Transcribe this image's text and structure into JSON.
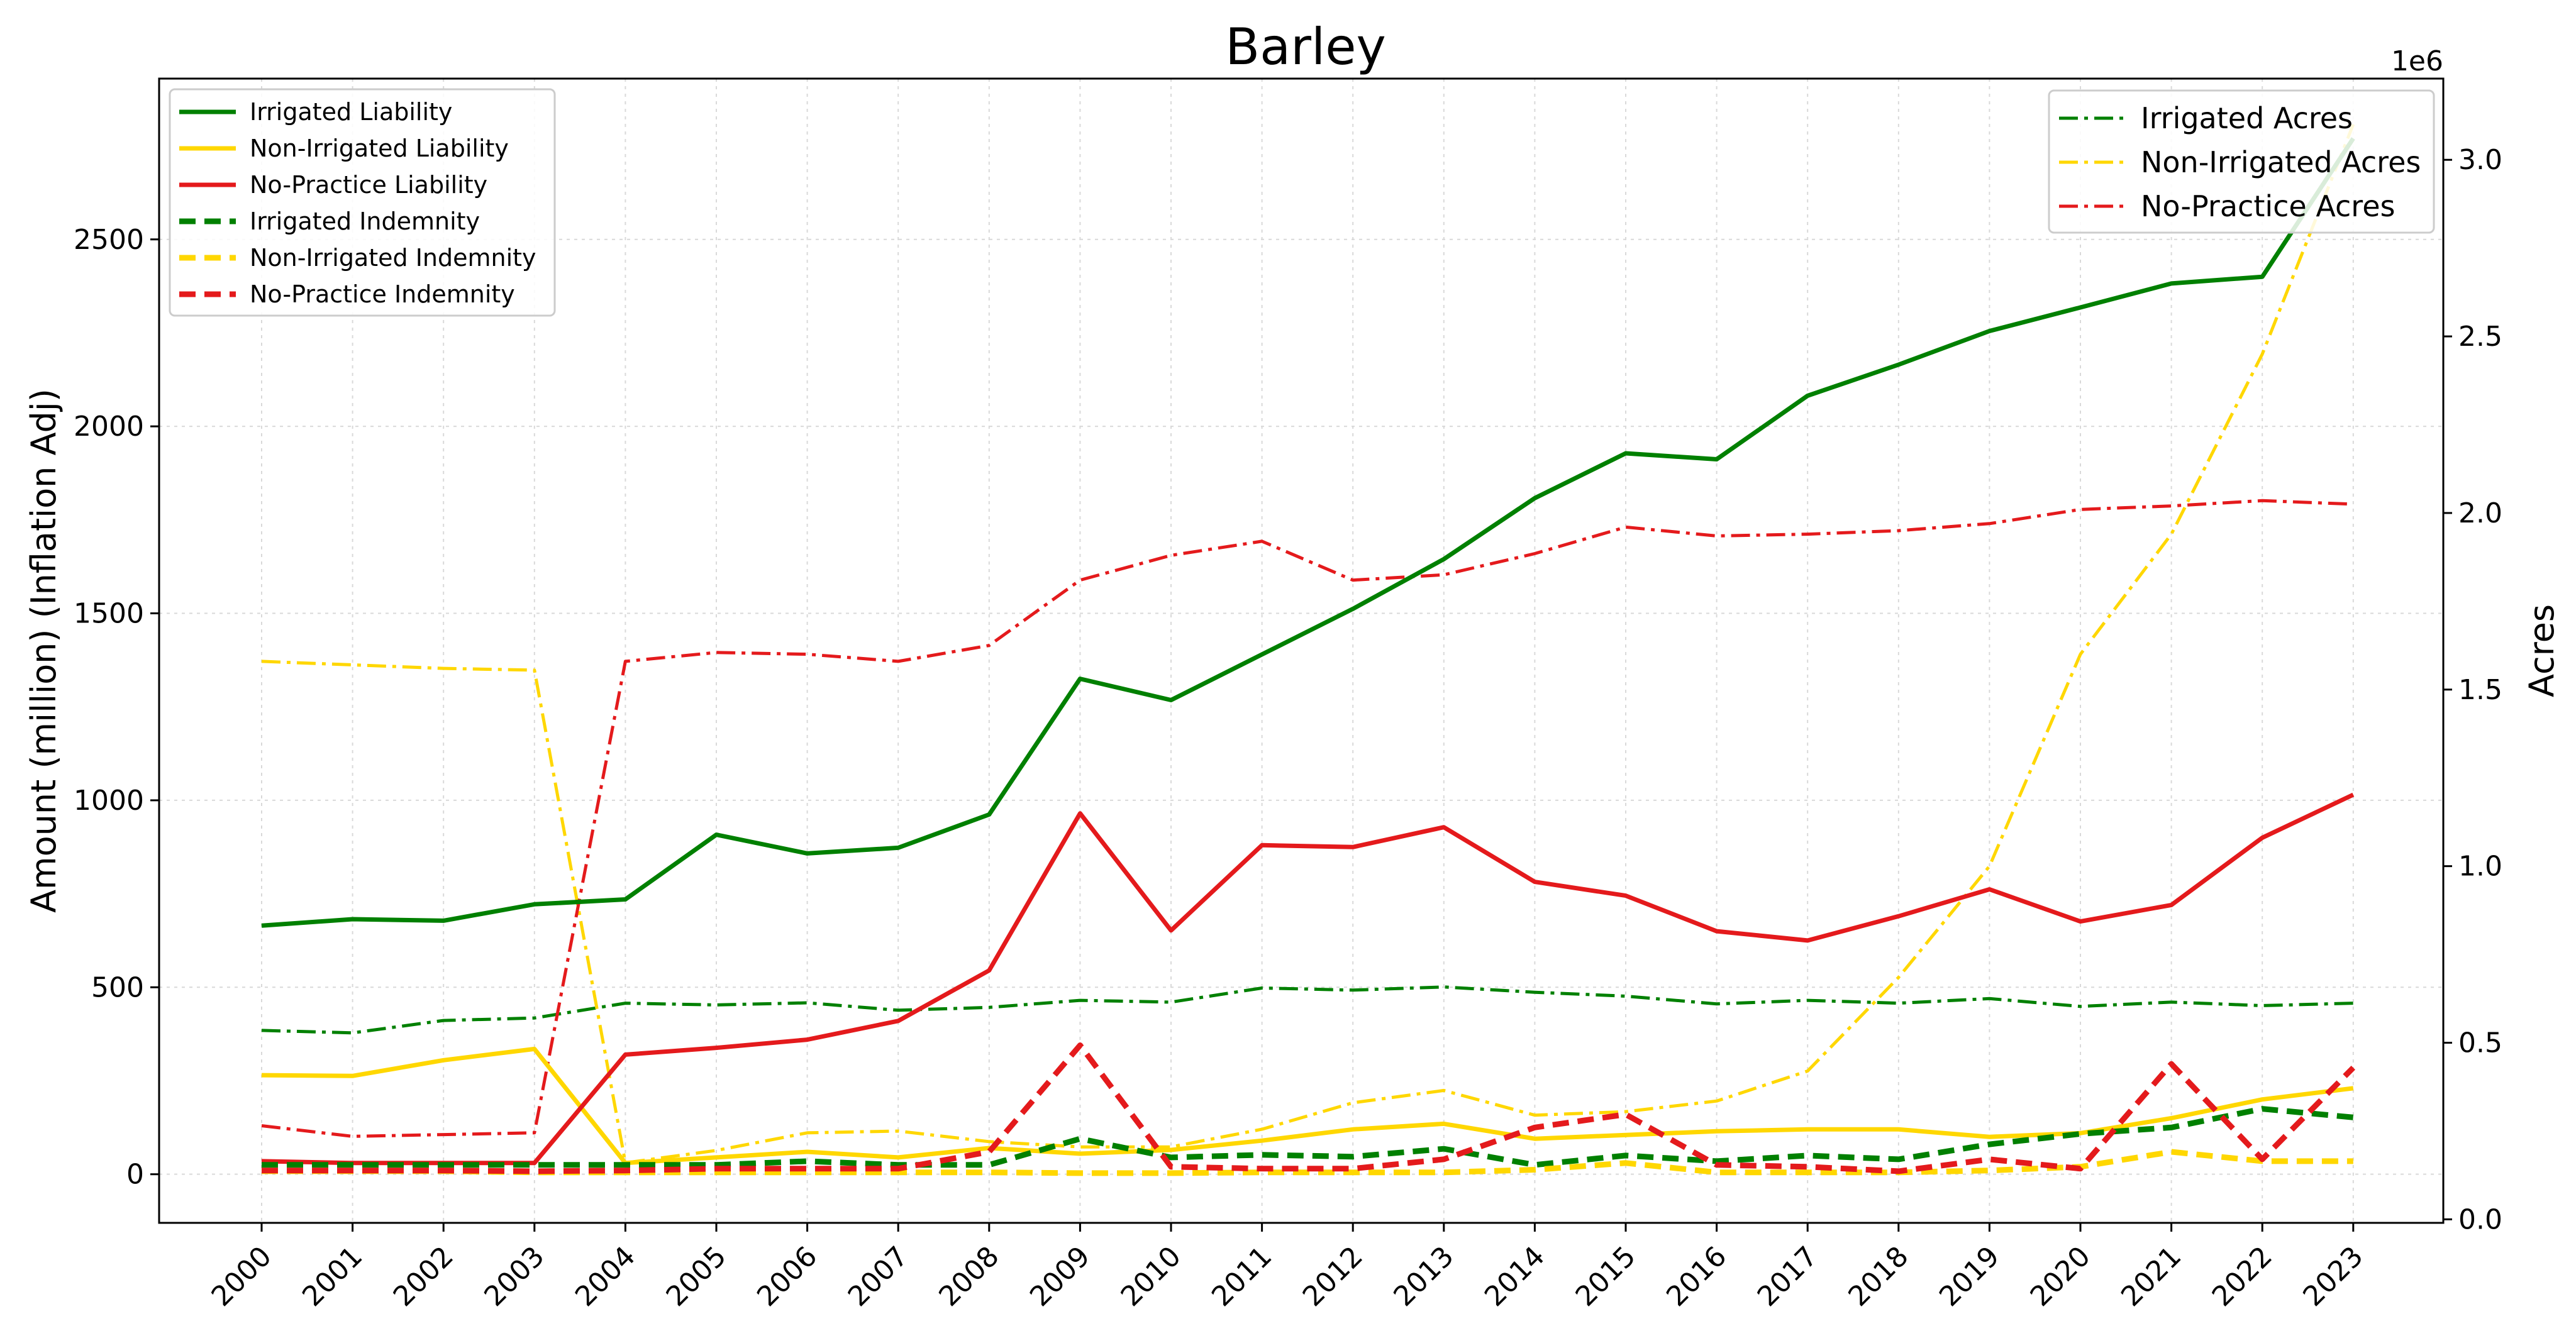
{
  "chart_data": {
    "type": "line",
    "title": "Barley",
    "ylabel": "Amount (million) (Inflation Adj)",
    "y2label": "Acres",
    "y2_multiplier": "1e6",
    "x": [
      "2000",
      "2001",
      "2002",
      "2003",
      "2004",
      "2005",
      "2006",
      "2007",
      "2008",
      "2009",
      "2010",
      "2011",
      "2012",
      "2013",
      "2014",
      "2015",
      "2016",
      "2017",
      "2018",
      "2019",
      "2020",
      "2021",
      "2022",
      "2023"
    ],
    "ylim": [
      -130,
      2930
    ],
    "yticks": [
      0,
      500,
      1000,
      1500,
      2000,
      2500
    ],
    "y2lim": [
      -0.01,
      3.23
    ],
    "y2ticks": [
      "0.0",
      "0.5",
      "1.0",
      "1.5",
      "2.0",
      "2.5",
      "3.0"
    ],
    "grid": true,
    "legend_left_placement": "upper-left",
    "legend_right_placement": "upper-right",
    "series_left": [
      {
        "name": "Irrigated Liability",
        "color": "#008000",
        "style": "solid",
        "values": [
          665,
          682,
          678,
          722,
          735,
          908,
          858,
          873,
          962,
          1325,
          1268,
          1390,
          1512,
          1645,
          1808,
          1928,
          1912,
          2082,
          2165,
          2255,
          2318,
          2382,
          2400,
          2770
        ]
      },
      {
        "name": "Non-Irrigated Liability",
        "color": "#FFD700",
        "style": "solid",
        "values": [
          265,
          263,
          305,
          335,
          30,
          45,
          60,
          45,
          70,
          55,
          65,
          90,
          120,
          135,
          95,
          105,
          115,
          120,
          120,
          100,
          110,
          150,
          200,
          230
        ]
      },
      {
        "name": "No-Practice Liability",
        "color": "#E41A1C",
        "style": "solid",
        "values": [
          35,
          30,
          30,
          30,
          320,
          338,
          360,
          410,
          545,
          965,
          652,
          880,
          875,
          928,
          782,
          745,
          650,
          625,
          690,
          762,
          676,
          720,
          900,
          1015
        ]
      },
      {
        "name": "Irrigated Indemnity",
        "color": "#008000",
        "style": "dashed",
        "values": [
          25,
          25,
          25,
          25,
          25,
          25,
          35,
          25,
          25,
          95,
          45,
          52,
          47,
          68,
          25,
          50,
          35,
          50,
          40,
          80,
          108,
          125,
          175,
          152
        ]
      },
      {
        "name": "Non-Irrigated Indemnity",
        "color": "#FFD700",
        "style": "dashed",
        "values": [
          8,
          8,
          8,
          5,
          5,
          5,
          5,
          5,
          5,
          3,
          3,
          5,
          5,
          5,
          12,
          30,
          5,
          5,
          5,
          10,
          20,
          60,
          35,
          35
        ]
      },
      {
        "name": "No-Practice Indemnity",
        "color": "#E41A1C",
        "style": "dashed",
        "values": [
          10,
          10,
          10,
          8,
          10,
          15,
          15,
          15,
          60,
          345,
          20,
          15,
          15,
          40,
          125,
          160,
          25,
          20,
          8,
          40,
          15,
          295,
          40,
          285
        ]
      }
    ],
    "series_right": [
      {
        "name": "Irrigated Acres",
        "color": "#008000",
        "style": "dashdot",
        "values": [
          0.535,
          0.528,
          0.563,
          0.57,
          0.612,
          0.607,
          0.613,
          0.592,
          0.6,
          0.62,
          0.615,
          0.655,
          0.649,
          0.658,
          0.643,
          0.632,
          0.61,
          0.62,
          0.612,
          0.625,
          0.603,
          0.615,
          0.605,
          0.612
        ]
      },
      {
        "name": "Non-Irrigated Acres",
        "color": "#FFD700",
        "style": "dashdot",
        "values": [
          1.58,
          1.57,
          1.56,
          1.555,
          0.16,
          0.195,
          0.245,
          0.25,
          0.22,
          0.205,
          0.205,
          0.255,
          0.33,
          0.365,
          0.295,
          0.305,
          0.335,
          0.42,
          0.685,
          1.0,
          1.6,
          1.94,
          2.45,
          3.1
        ]
      },
      {
        "name": "No-Practice Acres",
        "color": "#E41A1C",
        "style": "dashdot",
        "values": [
          0.265,
          0.235,
          0.24,
          0.245,
          1.58,
          1.605,
          1.6,
          1.58,
          1.625,
          1.81,
          1.88,
          1.92,
          1.81,
          1.825,
          1.885,
          1.96,
          1.935,
          1.94,
          1.95,
          1.97,
          2.01,
          2.02,
          2.035,
          2.025
        ]
      }
    ]
  }
}
